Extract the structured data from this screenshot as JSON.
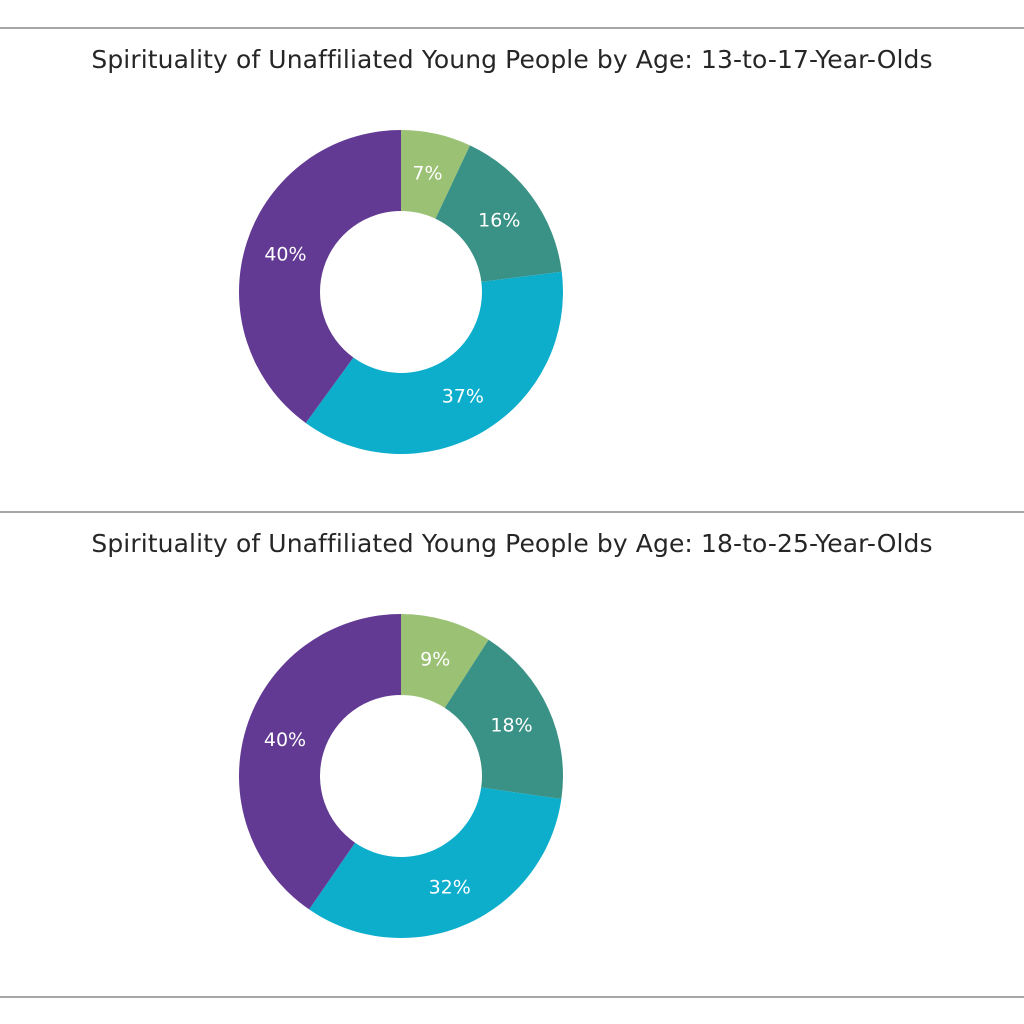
{
  "chart_data": [
    {
      "type": "pie",
      "title": "Spirituality of Unaffiliated Young People by Age: 13-to-17-Year-Olds",
      "categories": [
        "",
        "",
        "",
        ""
      ],
      "values": [
        7,
        16,
        37,
        40
      ],
      "labels": [
        "7%",
        "16%",
        "37%",
        "40%"
      ],
      "colors": [
        "#9ac174",
        "#3a9185",
        "#0caecc",
        "#633a93"
      ],
      "hole": 0.5
    },
    {
      "type": "pie",
      "title": "Spirituality of Unaffiliated Young People by Age: 18-to-25-Year-Olds",
      "categories": [
        "",
        "",
        "",
        ""
      ],
      "values": [
        9,
        18,
        32,
        40
      ],
      "labels": [
        "9%",
        "18%",
        "32%",
        "40%"
      ],
      "colors": [
        "#9ac174",
        "#3a9185",
        "#0caecc",
        "#633a93"
      ],
      "hole": 0.5
    }
  ]
}
